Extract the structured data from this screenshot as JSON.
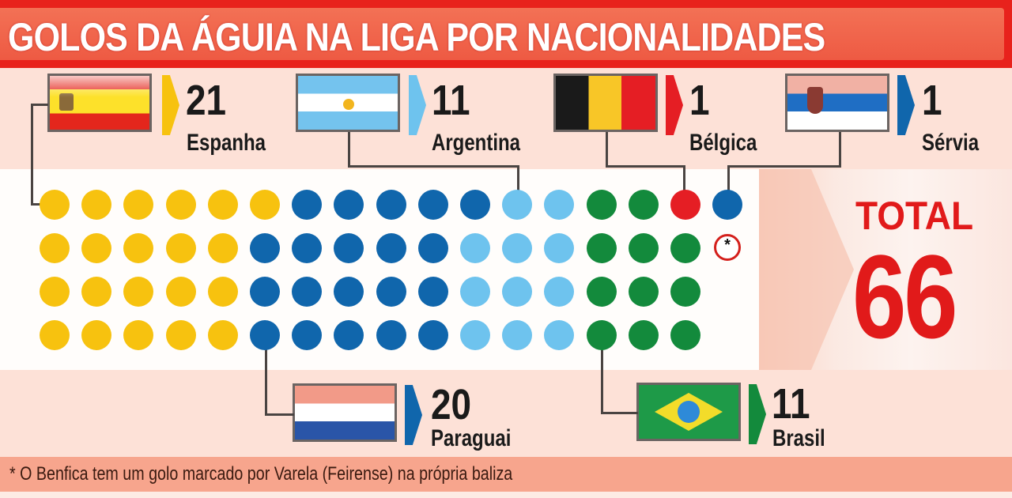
{
  "title": "GOLOS DA ÁGUIA NA LIGA POR NACIONALIDADES",
  "footnote": "* O Benfica tem um golo marcado por Varela (Feirense) na própria baliza",
  "total": {
    "label": "TOTAL",
    "value": "66"
  },
  "countries": [
    {
      "name": "Espanha",
      "goals": "21",
      "color": "#f7c20f",
      "flag": "spain-flag"
    },
    {
      "name": "Argentina",
      "goals": "11",
      "color": "#6ec3ee",
      "flag": "argentina-flag"
    },
    {
      "name": "Bélgica",
      "goals": "1",
      "color": "#e51e24",
      "flag": "belgium-flag"
    },
    {
      "name": "Sérvia",
      "goals": "1",
      "color": "#1066ac",
      "flag": "serbia-flag"
    },
    {
      "name": "Paraguai",
      "goals": "20",
      "color": "#1066ac",
      "flag": "paraguay-flag"
    },
    {
      "name": "Brasil",
      "goals": "11",
      "color": "#138a3c",
      "flag": "brazil-flag"
    }
  ],
  "own_goal_marker": "*",
  "colors": {
    "yellow": "#f7c20f",
    "dark_blue": "#1066ac",
    "light_blue": "#6ec3ee",
    "green": "#138a3c",
    "red": "#e51e24",
    "title_red": "#e8221c"
  },
  "chart_data": {
    "type": "bar",
    "subtype": "dot-matrix / unit chart",
    "title": "GOLOS DA ÁGUIA NA LIGA POR NACIONALIDADES",
    "categories": [
      "Espanha",
      "Paraguai",
      "Argentina",
      "Brasil",
      "Bélgica",
      "Sérvia",
      "Autogolo (Varela, Feirense)"
    ],
    "values": [
      21,
      20,
      11,
      11,
      1,
      1,
      1
    ],
    "total": 66,
    "xlabel": "",
    "ylabel": "Golos",
    "annotations": [
      "TOTAL 66",
      "* O Benfica tem um golo marcado por Varela (Feirense) na própria baliza"
    ]
  }
}
